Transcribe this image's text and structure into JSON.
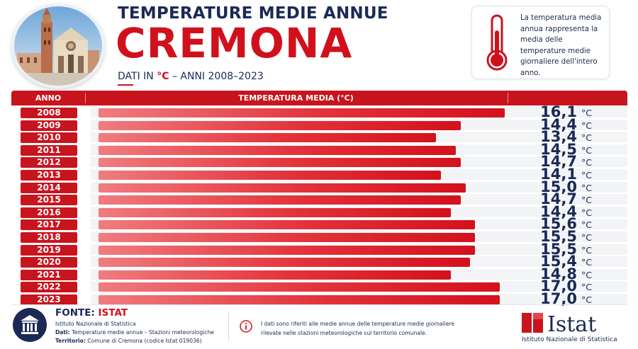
{
  "header": {
    "title_small": "TEMPERATURE MEDIE ANNUE",
    "title_big": "CREMONA",
    "subtitle_prefix": "DATI IN ",
    "subtitle_unit": "°C",
    "subtitle_suffix": " – ANNI 2008–2023"
  },
  "infobox": {
    "text": "La temperatura media annua rappresenta la media delle temperature medie giornaliere dell'intero anno.",
    "icon": "thermometer-icon"
  },
  "table": {
    "col_year": "ANNO",
    "col_temp": "TEMPERATURA MEDIA (°C)",
    "unit": "°C"
  },
  "chart_data": {
    "type": "bar",
    "orientation": "horizontal",
    "title": "TEMPERATURE MEDIE ANNUE",
    "categories": [
      "2008",
      "2009",
      "2010",
      "2011",
      "2012",
      "2013",
      "2014",
      "2015",
      "2016",
      "2017",
      "2018",
      "2019",
      "2020",
      "2021",
      "2022",
      "2023"
    ],
    "values": [
      16.1,
      14.4,
      13.4,
      14.5,
      14.7,
      14.1,
      15.0,
      14.7,
      14.4,
      15.6,
      15.5,
      15.5,
      15.4,
      14.8,
      17.0,
      17.0
    ],
    "value_labels": [
      "16,1",
      "14,4",
      "13,4",
      "14,5",
      "14,7",
      "14,1",
      "15,0",
      "14,7",
      "14,4",
      "15,6",
      "15,5",
      "15,5",
      "15,4",
      "14,8",
      "17,0",
      "17,0"
    ],
    "bar_fill_fraction": [
      0.83,
      0.74,
      0.69,
      0.73,
      0.74,
      0.7,
      0.75,
      0.74,
      0.72,
      0.77,
      0.77,
      0.77,
      0.76,
      0.72,
      0.82,
      0.82
    ],
    "xlabel": "TEMPERATURA MEDIA (°C)",
    "ylabel": "ANNO",
    "colors": {
      "bar": "#d3111b",
      "year_badge": "#c8141d",
      "text": "#1b2a55"
    }
  },
  "footer": {
    "fonte_label": "FONTE:",
    "fonte_name": "ISTAT",
    "org": "Istituto Nazionale di Statistica",
    "dati_label": "Dati:",
    "dati_value": "Temperature medie annue – Stazioni meteorologiche",
    "territorio_label": "Territorio:",
    "territorio_value": "Comune di Cremona (codice Istat 019036)",
    "note": "I dati sono riferiti alle medie annue delle temperature medie giornaliere rilevate nelle stazioni meteorologiche sul territorio comunale.",
    "logo_text": "Istat",
    "logo_sub": "Istituto Nazionale di Statistica"
  }
}
